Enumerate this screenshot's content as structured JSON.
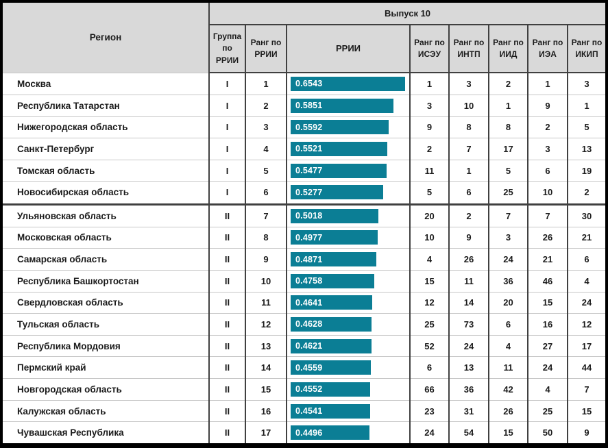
{
  "chart_data": {
    "type": "table",
    "title": "Выпуск 10",
    "region_header": "Регион",
    "columns": [
      "Группа по РРИИ",
      "Ранг по РРИИ",
      "РРИИ",
      "Ранг по ИСЭУ",
      "Ранг по ИНТП",
      "Ранг по ИИД",
      "Ранг по ИЭА",
      "Ранг по ИКИП"
    ],
    "bar_column": "РРИИ",
    "bar_color": "#0b7e95",
    "rows": [
      {
        "region": "Москва",
        "group": "I",
        "rank": 1,
        "rrii": 0.6543,
        "ranks": [
          1,
          3,
          2,
          1,
          3
        ]
      },
      {
        "region": "Республика Татарстан",
        "group": "I",
        "rank": 2,
        "rrii": 0.5851,
        "ranks": [
          3,
          10,
          1,
          9,
          1
        ]
      },
      {
        "region": "Нижегородская область",
        "group": "I",
        "rank": 3,
        "rrii": 0.5592,
        "ranks": [
          9,
          8,
          8,
          2,
          5
        ]
      },
      {
        "region": "Санкт-Петербург",
        "group": "I",
        "rank": 4,
        "rrii": 0.5521,
        "ranks": [
          2,
          7,
          17,
          3,
          13
        ]
      },
      {
        "region": "Томская область",
        "group": "I",
        "rank": 5,
        "rrii": 0.5477,
        "ranks": [
          11,
          1,
          5,
          6,
          19
        ]
      },
      {
        "region": "Новосибирская область",
        "group": "I",
        "rank": 6,
        "rrii": 0.5277,
        "ranks": [
          5,
          6,
          25,
          10,
          2
        ]
      },
      {
        "region": "Ульяновская область",
        "group": "II",
        "rank": 7,
        "rrii": 0.5018,
        "ranks": [
          20,
          2,
          7,
          7,
          30
        ]
      },
      {
        "region": "Московская область",
        "group": "II",
        "rank": 8,
        "rrii": 0.4977,
        "ranks": [
          10,
          9,
          3,
          26,
          21
        ]
      },
      {
        "region": "Самарская область",
        "group": "II",
        "rank": 9,
        "rrii": 0.4871,
        "ranks": [
          4,
          26,
          24,
          21,
          6
        ]
      },
      {
        "region": "Республика Башкортостан",
        "group": "II",
        "rank": 10,
        "rrii": 0.4758,
        "ranks": [
          15,
          11,
          36,
          46,
          4
        ]
      },
      {
        "region": "Свердловская область",
        "group": "II",
        "rank": 11,
        "rrii": 0.4641,
        "ranks": [
          12,
          14,
          20,
          15,
          24
        ]
      },
      {
        "region": "Тульская область",
        "group": "II",
        "rank": 12,
        "rrii": 0.4628,
        "ranks": [
          25,
          73,
          6,
          16,
          12
        ]
      },
      {
        "region": "Республика Мордовия",
        "group": "II",
        "rank": 13,
        "rrii": 0.4621,
        "ranks": [
          52,
          24,
          4,
          27,
          17
        ]
      },
      {
        "region": "Пермский край",
        "group": "II",
        "rank": 14,
        "rrii": 0.4559,
        "ranks": [
          6,
          13,
          11,
          24,
          44
        ]
      },
      {
        "region": "Новгородская область",
        "group": "II",
        "rank": 15,
        "rrii": 0.4552,
        "ranks": [
          66,
          36,
          42,
          4,
          7
        ]
      },
      {
        "region": "Калужская область",
        "group": "II",
        "rank": 16,
        "rrii": 0.4541,
        "ranks": [
          23,
          31,
          26,
          25,
          15
        ]
      },
      {
        "region": "Чувашская Республика",
        "group": "II",
        "rank": 17,
        "rrii": 0.4496,
        "ranks": [
          24,
          54,
          15,
          50,
          9
        ]
      }
    ]
  }
}
